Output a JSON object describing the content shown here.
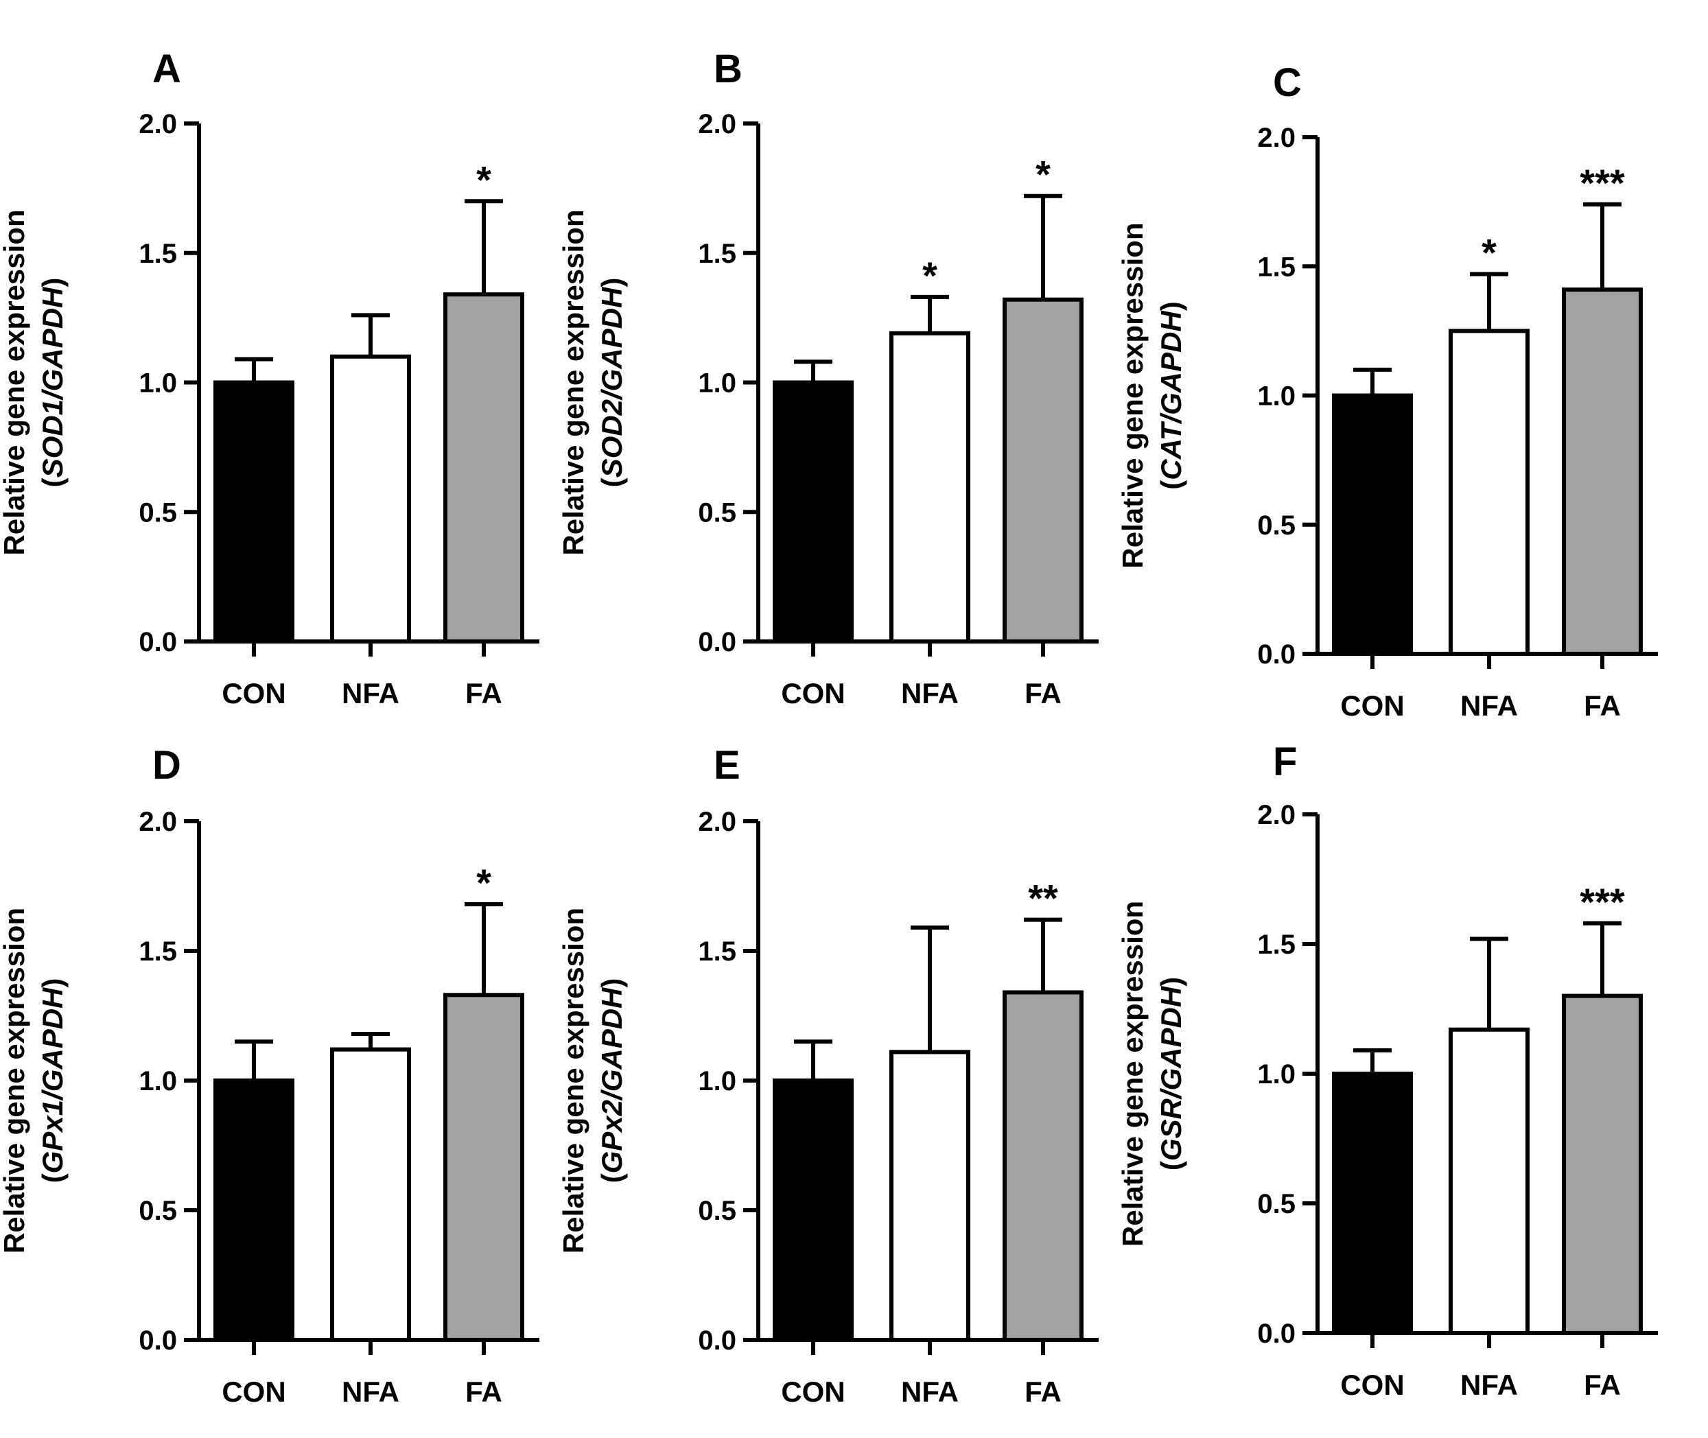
{
  "figure": {
    "group_colors": {
      "CON": "#000000",
      "NFA": "#ffffff",
      "FA": "#a3a3a6"
    },
    "axis_color": "#000000"
  },
  "chart_data": [
    {
      "type": "bar",
      "panel": "A",
      "categories": [
        "CON",
        "NFA",
        "FA"
      ],
      "values": [
        1.0,
        1.1,
        1.34
      ],
      "errors": [
        0.09,
        0.16,
        0.36
      ],
      "significance": [
        "",
        "",
        "*"
      ],
      "ylabel": "Relative gene expression",
      "ylabel_gene": "SOD1/GAPDH",
      "ylim": [
        0,
        2
      ],
      "yticks": [
        "0.0",
        "0.5",
        "1.0",
        "1.5",
        "2.0"
      ]
    },
    {
      "type": "bar",
      "panel": "B",
      "categories": [
        "CON",
        "NFA",
        "FA"
      ],
      "values": [
        1.0,
        1.19,
        1.32
      ],
      "errors": [
        0.08,
        0.14,
        0.4
      ],
      "significance": [
        "",
        "*",
        "*"
      ],
      "ylabel": "Relative gene expression",
      "ylabel_gene": "SOD2/GAPDH",
      "ylim": [
        0,
        2
      ],
      "yticks": [
        "0.0",
        "0.5",
        "1.0",
        "1.5",
        "2.0"
      ]
    },
    {
      "type": "bar",
      "panel": "C",
      "categories": [
        "CON",
        "NFA",
        "FA"
      ],
      "values": [
        1.0,
        1.25,
        1.41
      ],
      "errors": [
        0.1,
        0.22,
        0.33
      ],
      "significance": [
        "",
        "*",
        "***"
      ],
      "ylabel": "Relative gene expression",
      "ylabel_gene": "CAT/GAPDH",
      "ylim": [
        0,
        2
      ],
      "yticks": [
        "0.0",
        "0.5",
        "1.0",
        "1.5",
        "2.0"
      ]
    },
    {
      "type": "bar",
      "panel": "D",
      "categories": [
        "CON",
        "NFA",
        "FA"
      ],
      "values": [
        1.0,
        1.12,
        1.33
      ],
      "errors": [
        0.15,
        0.06,
        0.35
      ],
      "significance": [
        "",
        "",
        "*"
      ],
      "ylabel": "Relative gene expression",
      "ylabel_gene": "GPx1/GAPDH",
      "ylim": [
        0,
        2
      ],
      "yticks": [
        "0.0",
        "0.5",
        "1.0",
        "1.5",
        "2.0"
      ]
    },
    {
      "type": "bar",
      "panel": "E",
      "categories": [
        "CON",
        "NFA",
        "FA"
      ],
      "values": [
        1.0,
        1.11,
        1.34
      ],
      "errors": [
        0.15,
        0.48,
        0.28
      ],
      "significance": [
        "",
        "",
        "**"
      ],
      "ylabel": "Relative gene expression",
      "ylabel_gene": "GPx2/GAPDH",
      "ylim": [
        0,
        2
      ],
      "yticks": [
        "0.0",
        "0.5",
        "1.0",
        "1.5",
        "2.0"
      ]
    },
    {
      "type": "bar",
      "panel": "F",
      "categories": [
        "CON",
        "NFA",
        "FA"
      ],
      "values": [
        1.0,
        1.17,
        1.3
      ],
      "errors": [
        0.09,
        0.35,
        0.28
      ],
      "significance": [
        "",
        "",
        "***"
      ],
      "ylabel": "Relative gene expression",
      "ylabel_gene": "GSR/GAPDH",
      "ylim": [
        0,
        2
      ],
      "yticks": [
        "0.0",
        "0.5",
        "1.0",
        "1.5",
        "2.0"
      ]
    }
  ]
}
